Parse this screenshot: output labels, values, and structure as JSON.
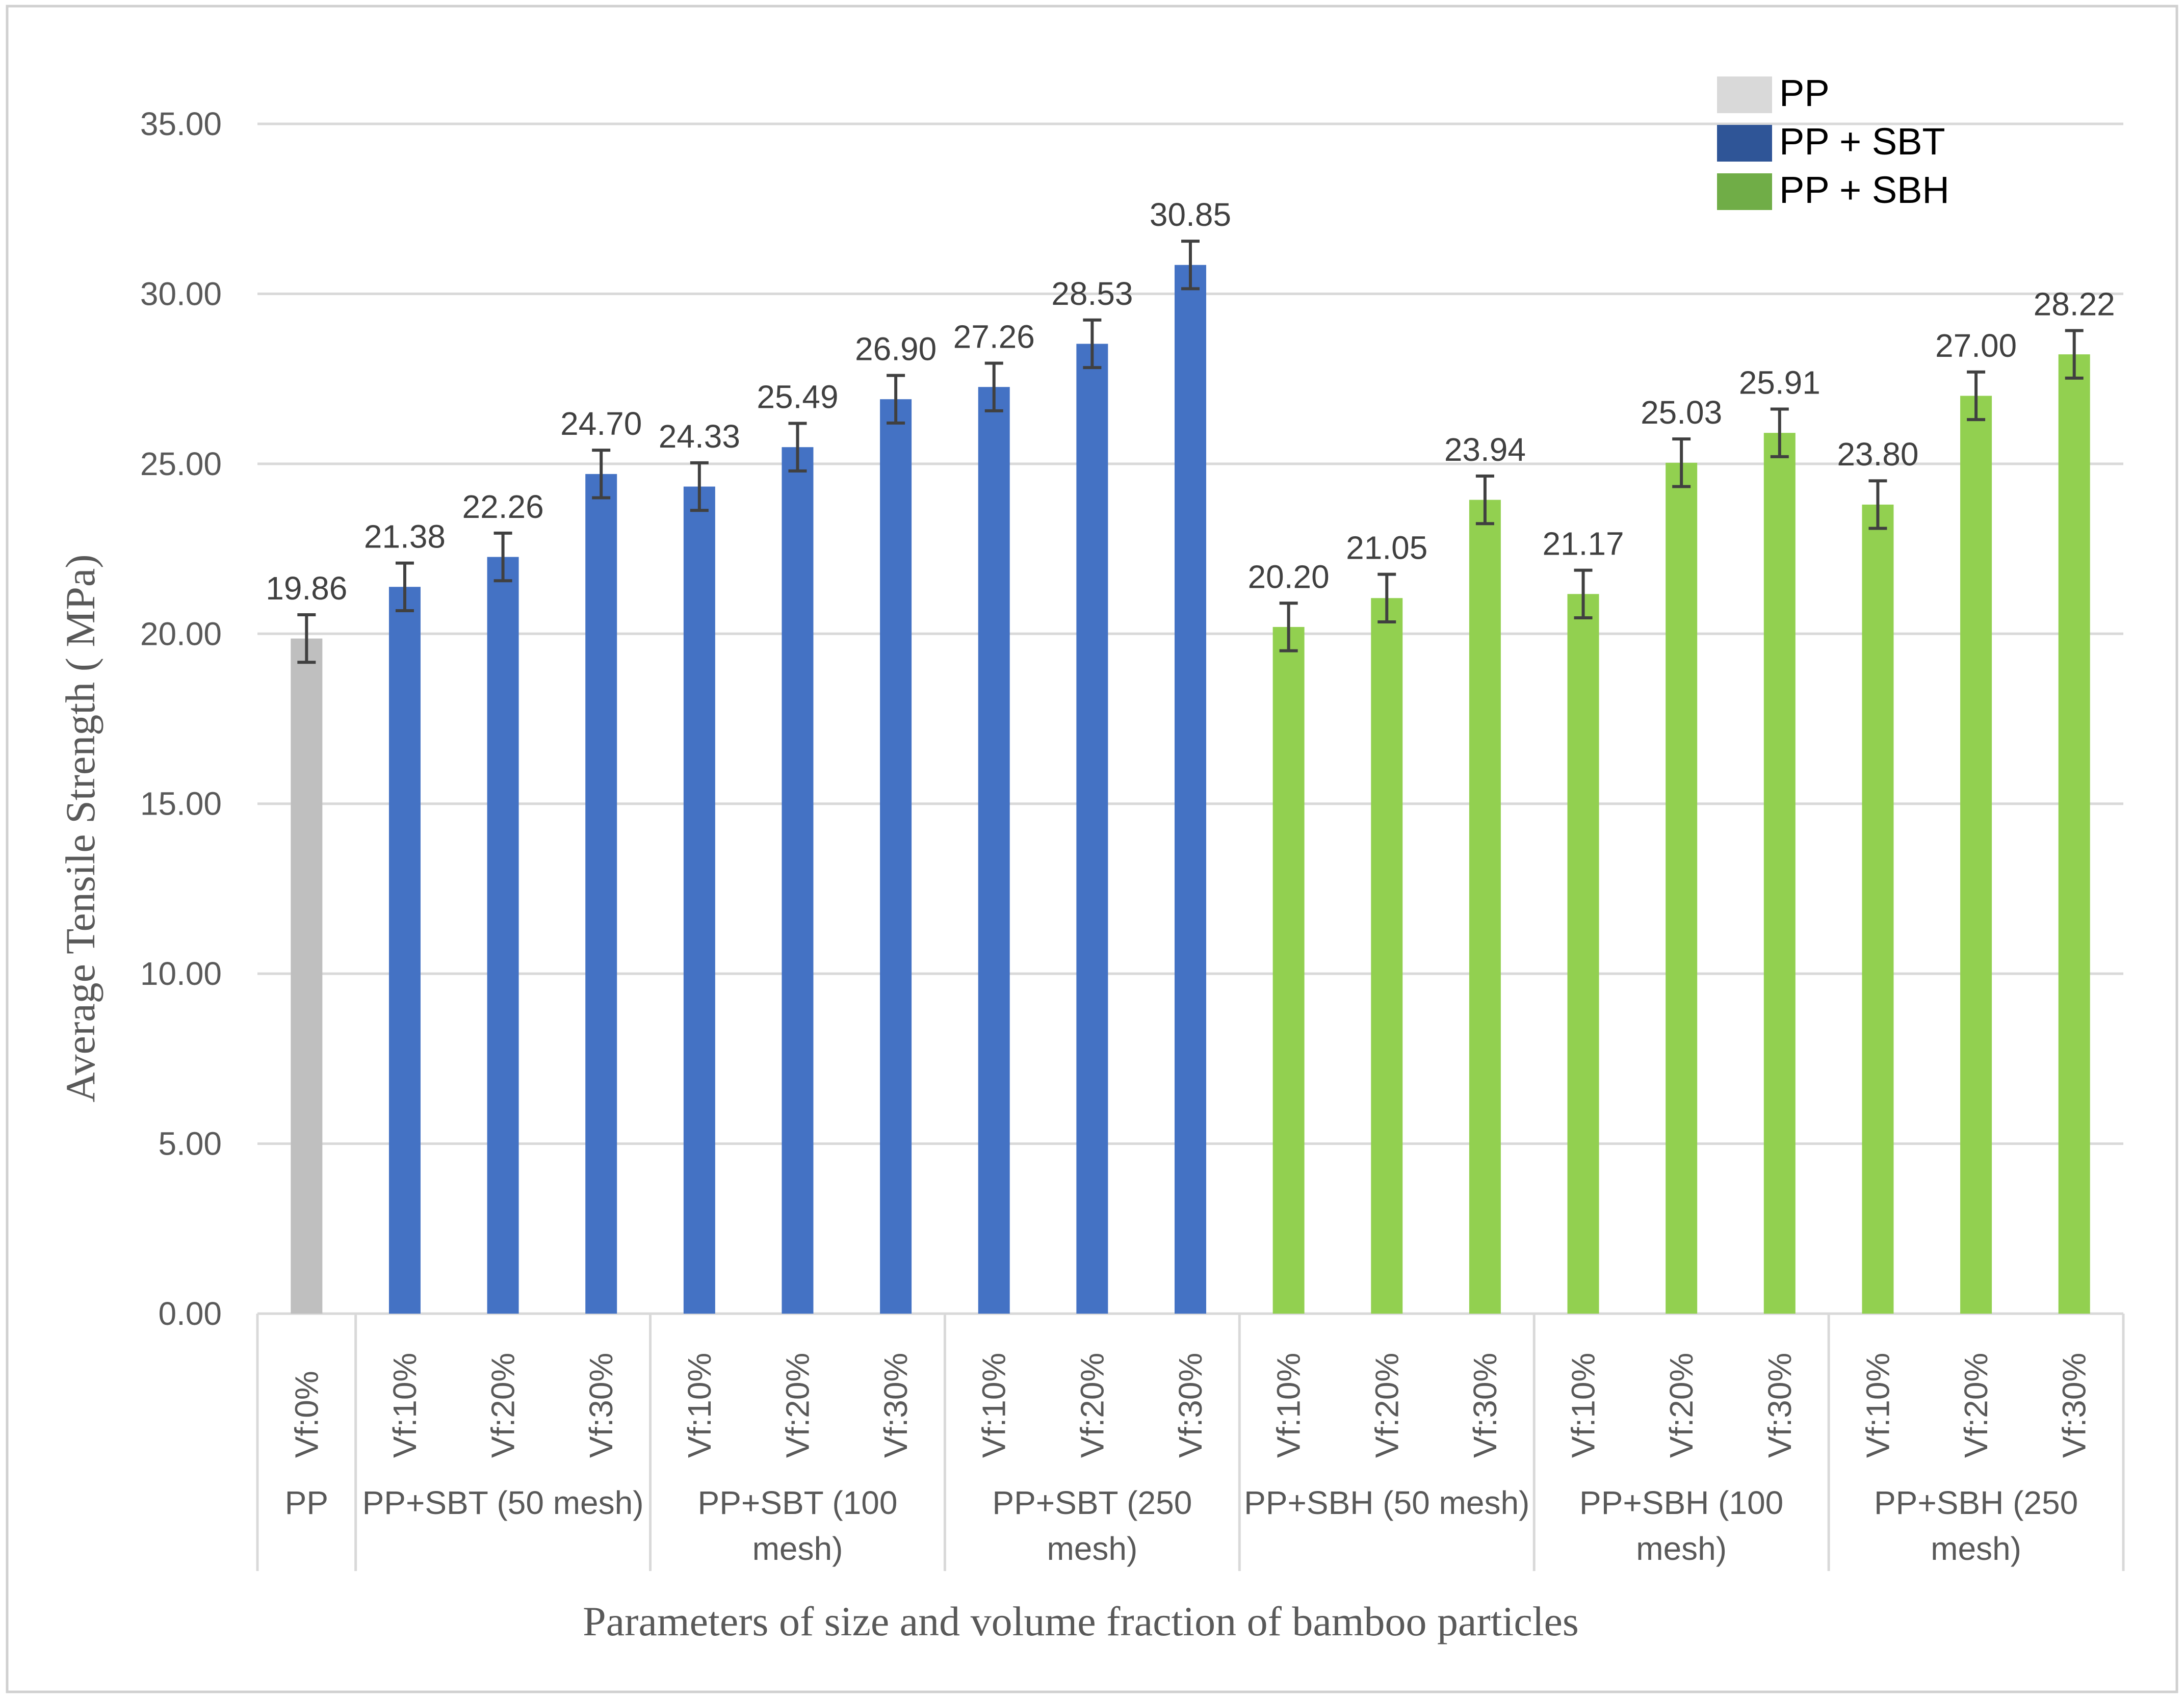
{
  "chart_data": {
    "type": "bar",
    "title": "",
    "xlabel": "Parameters of size and volume fraction of bamboo particles",
    "ylabel": "Average Tensile Strength ( MPa)",
    "ylim": [
      0,
      35
    ],
    "yticks": [
      "0.00",
      "5.00",
      "10.00",
      "15.00",
      "20.00",
      "25.00",
      "30.00",
      "35.00"
    ],
    "grid": true,
    "legend_position": "top-right",
    "legend": [
      {
        "name": "PP",
        "color": "#D9D9D9"
      },
      {
        "name": "PP + SBT",
        "color": "#2F5597"
      },
      {
        "name": "PP + SBH",
        "color": "#70AD47"
      }
    ],
    "groups": [
      {
        "name": "PP",
        "label_lines": [
          "PP"
        ],
        "color": "#BFBFBF",
        "size": 1
      },
      {
        "name": "PP+SBT (50 mesh)",
        "label_lines": [
          "PP+SBT (50 mesh)"
        ],
        "color": "#4472C4",
        "size": 3
      },
      {
        "name": "PP+SBT (100 mesh)",
        "label_lines": [
          "PP+SBT (100",
          "mesh)"
        ],
        "color": "#4472C4",
        "size": 3
      },
      {
        "name": "PP+SBT (250 mesh)",
        "label_lines": [
          "PP+SBT (250",
          "mesh)"
        ],
        "color": "#4472C4",
        "size": 3
      },
      {
        "name": "PP+SBH (50 mesh)",
        "label_lines": [
          "PP+SBH (50 mesh)"
        ],
        "color": "#92D050",
        "size": 3
      },
      {
        "name": "PP+SBH (100 mesh)",
        "label_lines": [
          "PP+SBH (100",
          "mesh)"
        ],
        "color": "#92D050",
        "size": 3
      },
      {
        "name": "PP+SBH (250 mesh)",
        "label_lines": [
          "PP+SBH (250",
          "mesh)"
        ],
        "color": "#92D050",
        "size": 3
      }
    ],
    "categories": [
      "Vf:0%",
      "Vf:10%",
      "Vf:20%",
      "Vf:30%",
      "Vf:10%",
      "Vf:20%",
      "Vf:30%",
      "Vf:10%",
      "Vf:20%",
      "Vf:30%",
      "Vf:10%",
      "Vf:20%",
      "Vf:30%",
      "Vf:10%",
      "Vf:20%",
      "Vf:30%",
      "Vf:10%",
      "Vf:20%",
      "Vf:30%"
    ],
    "values": [
      19.86,
      21.38,
      22.26,
      24.7,
      24.33,
      25.49,
      26.9,
      27.26,
      28.53,
      30.85,
      20.2,
      21.05,
      23.94,
      21.17,
      25.03,
      25.91,
      23.8,
      27.0,
      28.22
    ],
    "value_labels": [
      "19.86",
      "21.38",
      "22.26",
      "24.70",
      "24.33",
      "25.49",
      "26.90",
      "27.26",
      "28.53",
      "30.85",
      "20.20",
      "21.05",
      "23.94",
      "21.17",
      "25.03",
      "25.91",
      "23.80",
      "27.00",
      "28.22"
    ],
    "error": [
      0.7,
      0.7,
      0.7,
      0.7,
      0.7,
      0.7,
      0.7,
      0.7,
      0.7,
      0.7,
      0.7,
      0.7,
      0.7,
      0.7,
      0.7,
      0.7,
      0.7,
      0.7,
      0.7
    ]
  }
}
